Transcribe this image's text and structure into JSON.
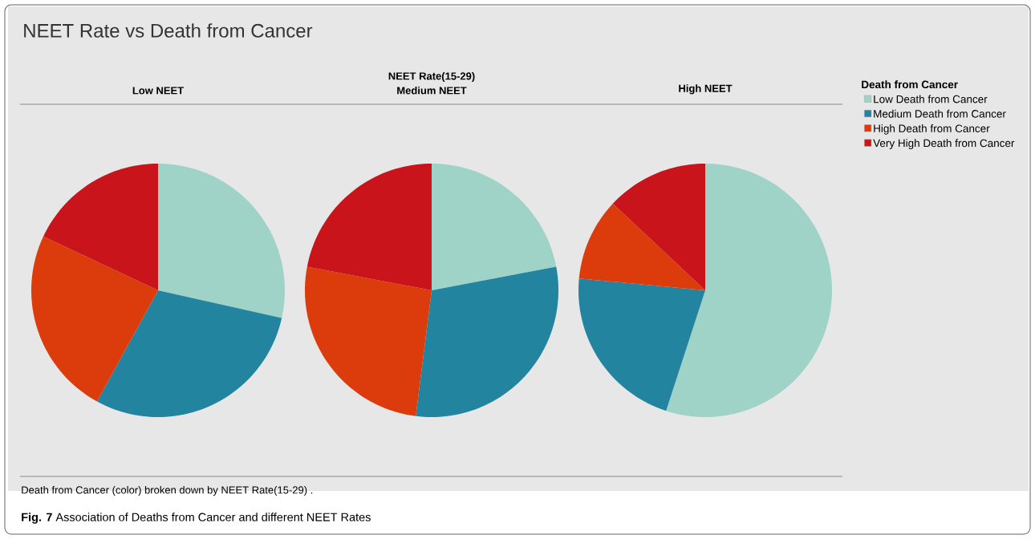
{
  "chart_data": [
    {
      "type": "pie",
      "title": "Low NEET",
      "categories": [
        null,
        null,
        null,
        null
      ],
      "values": [
        28.5,
        29.5,
        24,
        18
      ],
      "colors": [
        "#9fd3c7",
        "#22849e",
        "#dc3b0c",
        "#c8141a"
      ],
      "annotations": [
        "NEET Rate vs Death from Cancer",
        "NEET Rate(15-29)",
        "Death from Cancer (color) broken down by NEET Rate(15-29) .",
        "**Fig. 7** Association of Deaths from Cancer and different NEET Rates"
      ]
    },
    {
      "type": "pie",
      "title": "Medium NEET",
      "categories": [
        null,
        null,
        null,
        null
      ],
      "values": [
        22,
        30,
        26,
        22
      ],
      "colors": [
        "#9fd3c7",
        "#22849e",
        "#dc3b0c",
        "#c8141a"
      ]
    },
    {
      "type": "pie",
      "title": "High NEET",
      "categories": [
        "Low Death from Cancer",
        "Medium Death from Cancer",
        "High Death from Cancer",
        "Very High Death from Cancer"
      ],
      "values": [
        55,
        21.5,
        10.5,
        13
      ],
      "colors": [
        "#9fd3c7",
        "#22849e",
        "#dc3b0c",
        "#c8141a"
      ],
      "legend": "right",
      "legend_title": "Death from Cancer"
    }
  ]
}
